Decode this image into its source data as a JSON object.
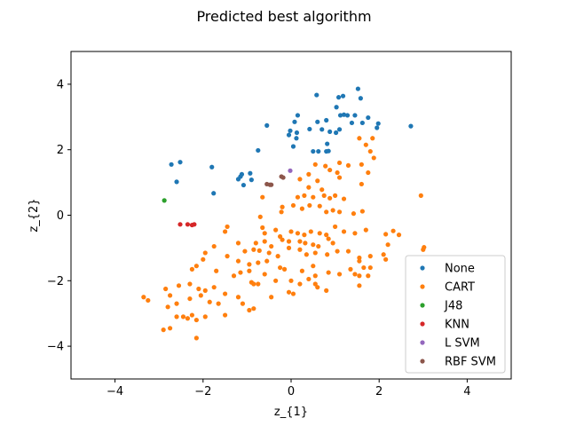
{
  "chart_data": {
    "type": "scatter",
    "title": "Predicted best algorithm",
    "xlabel": "z_{1}",
    "ylabel": "z_{2}",
    "xlim": [
      -5,
      5
    ],
    "ylim": [
      -5,
      5
    ],
    "xticks": [
      -4,
      -2,
      0,
      2,
      4
    ],
    "yticks": [
      -4,
      -2,
      0,
      2,
      4
    ],
    "xtick_labels": [
      "−4",
      "−2",
      "0",
      "2",
      "4"
    ],
    "ytick_labels": [
      "−4",
      "−2",
      "0",
      "2",
      "4"
    ],
    "grid": false,
    "legend_position": "lower-right",
    "series": [
      {
        "name": "None",
        "color": "#1f77b4",
        "points": [
          [
            0.58,
            3.67
          ],
          [
            1.08,
            3.6
          ],
          [
            1.18,
            3.64
          ],
          [
            1.52,
            3.86
          ],
          [
            1.58,
            3.57
          ],
          [
            1.03,
            3.3
          ],
          [
            1.12,
            3.05
          ],
          [
            1.2,
            3.07
          ],
          [
            1.28,
            3.05
          ],
          [
            1.45,
            3.05
          ],
          [
            1.75,
            2.98
          ],
          [
            0.15,
            3.05
          ],
          [
            0.08,
            2.85
          ],
          [
            0.6,
            2.85
          ],
          [
            0.8,
            2.9
          ],
          [
            1.38,
            2.82
          ],
          [
            1.62,
            2.82
          ],
          [
            1.98,
            2.8
          ],
          [
            1.95,
            2.67
          ],
          [
            2.72,
            2.72
          ],
          [
            -0.55,
            2.74
          ],
          [
            -0.02,
            2.58
          ],
          [
            -0.05,
            2.45
          ],
          [
            0.13,
            2.52
          ],
          [
            0.12,
            2.35
          ],
          [
            0.42,
            2.63
          ],
          [
            0.7,
            2.62
          ],
          [
            0.88,
            2.55
          ],
          [
            1.02,
            2.52
          ],
          [
            1.1,
            2.62
          ],
          [
            0.82,
            2.18
          ],
          [
            0.05,
            2.1
          ],
          [
            -0.75,
            1.98
          ],
          [
            0.5,
            1.95
          ],
          [
            0.62,
            1.95
          ],
          [
            0.8,
            1.95
          ],
          [
            0.85,
            1.96
          ],
          [
            -2.72,
            1.55
          ],
          [
            -2.52,
            1.62
          ],
          [
            -1.8,
            1.47
          ],
          [
            -0.93,
            1.28
          ],
          [
            -1.12,
            1.25
          ],
          [
            -1.15,
            1.18
          ],
          [
            -1.2,
            1.1
          ],
          [
            -0.9,
            1.08
          ],
          [
            -2.6,
            1.02
          ],
          [
            -1.08,
            0.92
          ],
          [
            -1.76,
            0.67
          ]
        ]
      },
      {
        "name": "CART",
        "color": "#ff7f0e",
        "points": [
          [
            1.55,
            2.35
          ],
          [
            1.85,
            2.35
          ],
          [
            1.7,
            2.15
          ],
          [
            1.8,
            1.95
          ],
          [
            1.88,
            1.75
          ],
          [
            1.1,
            1.6
          ],
          [
            1.3,
            1.52
          ],
          [
            1.05,
            1.3
          ],
          [
            1.1,
            1.15
          ],
          [
            1.6,
            1.55
          ],
          [
            1.75,
            1.3
          ],
          [
            1.6,
            0.95
          ],
          [
            0.55,
            1.55
          ],
          [
            0.78,
            1.5
          ],
          [
            0.88,
            1.38
          ],
          [
            0.4,
            1.25
          ],
          [
            0.6,
            1.05
          ],
          [
            0.2,
            1.1
          ],
          [
            0.4,
            0.85
          ],
          [
            0.7,
            0.78
          ],
          [
            0.15,
            0.55
          ],
          [
            0.3,
            0.6
          ],
          [
            0.5,
            0.55
          ],
          [
            0.75,
            0.6
          ],
          [
            0.88,
            0.52
          ],
          [
            1.0,
            0.6
          ],
          [
            1.2,
            0.5
          ],
          [
            2.95,
            0.6
          ],
          [
            -0.2,
            0.25
          ],
          [
            -0.22,
            0.1
          ],
          [
            0.05,
            0.3
          ],
          [
            0.25,
            0.2
          ],
          [
            0.42,
            0.3
          ],
          [
            0.65,
            0.28
          ],
          [
            0.8,
            0.1
          ],
          [
            0.95,
            0.15
          ],
          [
            1.1,
            0.1
          ],
          [
            1.42,
            0.05
          ],
          [
            1.62,
            0.12
          ],
          [
            -0.65,
            0.55
          ],
          [
            -0.7,
            -0.05
          ],
          [
            -1.45,
            -0.35
          ],
          [
            -1.5,
            -0.5
          ],
          [
            -0.65,
            -0.38
          ],
          [
            -0.6,
            -0.55
          ],
          [
            -0.35,
            -0.45
          ],
          [
            -0.25,
            -0.65
          ],
          [
            0.0,
            -0.5
          ],
          [
            0.15,
            -0.55
          ],
          [
            0.3,
            -0.6
          ],
          [
            0.45,
            -0.5
          ],
          [
            0.65,
            -0.55
          ],
          [
            0.8,
            -0.6
          ],
          [
            1.0,
            -0.35
          ],
          [
            1.2,
            -0.5
          ],
          [
            1.45,
            -0.55
          ],
          [
            1.7,
            -0.45
          ],
          [
            2.15,
            -0.58
          ],
          [
            2.32,
            -0.48
          ],
          [
            2.45,
            -0.6
          ],
          [
            -0.8,
            -0.85
          ],
          [
            -0.6,
            -0.8
          ],
          [
            -0.45,
            -0.95
          ],
          [
            -0.2,
            -0.75
          ],
          [
            -0.05,
            -0.8
          ],
          [
            0.2,
            -0.8
          ],
          [
            0.32,
            -0.85
          ],
          [
            0.5,
            -0.9
          ],
          [
            0.62,
            -0.95
          ],
          [
            0.85,
            -0.72
          ],
          [
            0.95,
            -0.85
          ],
          [
            2.2,
            -0.9
          ],
          [
            3.02,
            -0.98
          ],
          [
            3.0,
            -1.05
          ],
          [
            -1.2,
            -0.85
          ],
          [
            -1.05,
            -1.1
          ],
          [
            -0.85,
            -1.05
          ],
          [
            -0.72,
            -1.08
          ],
          [
            -0.5,
            -1.15
          ],
          [
            -0.3,
            -1.25
          ],
          [
            -0.05,
            -1.0
          ],
          [
            0.2,
            -1.05
          ],
          [
            0.35,
            -1.2
          ],
          [
            0.55,
            -1.15
          ],
          [
            0.82,
            -1.2
          ],
          [
            1.05,
            -1.1
          ],
          [
            1.3,
            -1.1
          ],
          [
            1.55,
            -1.3
          ],
          [
            1.8,
            -1.25
          ],
          [
            2.1,
            -1.2
          ],
          [
            2.15,
            -1.35
          ],
          [
            -1.75,
            -0.95
          ],
          [
            -1.95,
            -1.15
          ],
          [
            -2.0,
            -1.35
          ],
          [
            -1.45,
            -1.25
          ],
          [
            -1.2,
            -1.4
          ],
          [
            -0.95,
            -1.5
          ],
          [
            -0.75,
            -1.45
          ],
          [
            -0.55,
            -1.4
          ],
          [
            -1.7,
            -1.7
          ],
          [
            -2.15,
            -1.55
          ],
          [
            -2.25,
            -1.65
          ],
          [
            -1.15,
            -1.75
          ],
          [
            -1.3,
            -1.85
          ],
          [
            -0.95,
            -1.7
          ],
          [
            -0.6,
            -1.8
          ],
          [
            -0.25,
            -1.6
          ],
          [
            -0.15,
            -1.65
          ],
          [
            0.25,
            -1.7
          ],
          [
            0.5,
            -1.55
          ],
          [
            0.4,
            -1.95
          ],
          [
            0.55,
            -1.85
          ],
          [
            0.85,
            -1.75
          ],
          [
            1.1,
            -1.8
          ],
          [
            1.35,
            -1.65
          ],
          [
            1.55,
            -1.4
          ],
          [
            1.65,
            -1.6
          ],
          [
            1.8,
            -1.6
          ],
          [
            1.75,
            -1.85
          ],
          [
            1.55,
            -2.15
          ],
          [
            1.45,
            -1.8
          ],
          [
            -2.55,
            -2.15
          ],
          [
            -2.3,
            -2.1
          ],
          [
            -2.1,
            -2.25
          ],
          [
            -1.95,
            -2.3
          ],
          [
            -1.75,
            -2.2
          ],
          [
            -1.5,
            -2.4
          ],
          [
            -0.9,
            -2.05
          ],
          [
            -0.85,
            -2.1
          ],
          [
            -0.75,
            -2.1
          ],
          [
            -0.35,
            -2.0
          ],
          [
            0.0,
            -2.0
          ],
          [
            0.2,
            -2.1
          ],
          [
            0.55,
            -2.1
          ],
          [
            0.6,
            -2.2
          ],
          [
            0.8,
            -2.3
          ],
          [
            1.55,
            -1.85
          ],
          [
            -2.85,
            -2.25
          ],
          [
            -2.75,
            -2.45
          ],
          [
            -2.6,
            -2.7
          ],
          [
            -2.8,
            -2.8
          ],
          [
            -2.3,
            -2.55
          ],
          [
            -2.05,
            -2.45
          ],
          [
            -1.85,
            -2.65
          ],
          [
            -1.65,
            -2.7
          ],
          [
            -1.2,
            -2.5
          ],
          [
            -1.1,
            -2.7
          ],
          [
            -0.95,
            -2.9
          ],
          [
            -0.85,
            -2.85
          ],
          [
            -0.45,
            -2.5
          ],
          [
            -0.05,
            -2.35
          ],
          [
            0.05,
            -2.4
          ],
          [
            -2.6,
            -3.1
          ],
          [
            -2.45,
            -3.1
          ],
          [
            -2.35,
            -3.15
          ],
          [
            -2.25,
            -3.05
          ],
          [
            -2.15,
            -3.2
          ],
          [
            -1.95,
            -3.1
          ],
          [
            -1.5,
            -3.05
          ],
          [
            -3.35,
            -2.5
          ],
          [
            -3.25,
            -2.6
          ],
          [
            -2.75,
            -3.45
          ],
          [
            -2.9,
            -3.5
          ],
          [
            -2.15,
            -3.75
          ]
        ]
      },
      {
        "name": "J48",
        "color": "#2ca02c",
        "points": [
          [
            -2.88,
            0.45
          ]
        ]
      },
      {
        "name": "KNN",
        "color": "#d62728",
        "points": [
          [
            -2.52,
            -0.28
          ],
          [
            -2.35,
            -0.28
          ],
          [
            -2.25,
            -0.3
          ],
          [
            -2.2,
            -0.28
          ]
        ]
      },
      {
        "name": "L SVM",
        "color": "#9467bd",
        "points": [
          [
            -0.02,
            1.36
          ]
        ]
      },
      {
        "name": "RBF SVM",
        "color": "#8c564b",
        "points": [
          [
            -0.55,
            0.95
          ],
          [
            -0.48,
            0.93
          ],
          [
            -0.45,
            0.93
          ],
          [
            -0.22,
            1.18
          ],
          [
            -0.18,
            1.15
          ]
        ]
      }
    ]
  }
}
